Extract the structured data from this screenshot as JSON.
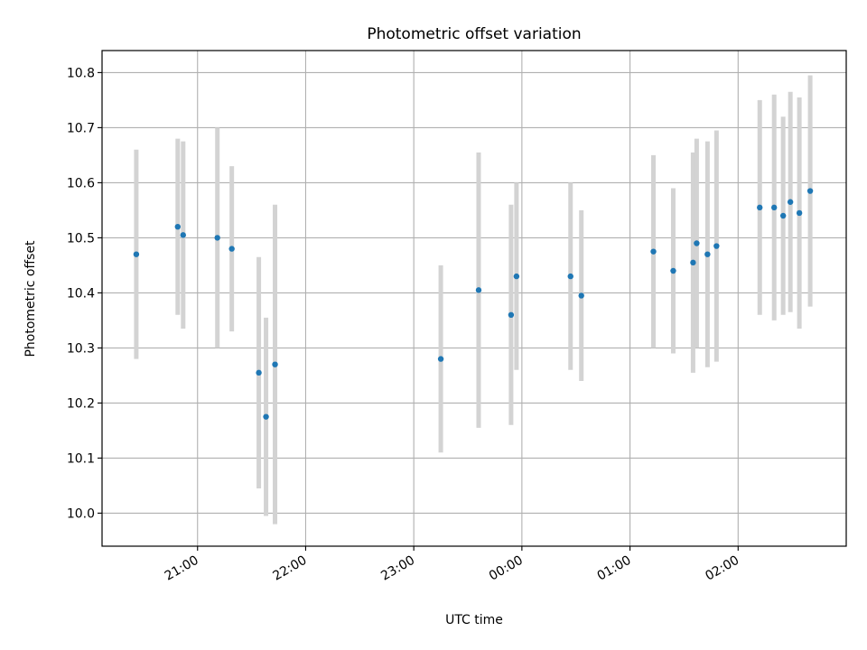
{
  "chart_data": {
    "type": "scatter",
    "title": "Photometric offset variation",
    "xlabel": "UTC time",
    "ylabel": "Photometric offset",
    "x_tick_labels": [
      "21:00",
      "22:00",
      "23:00",
      "00:00",
      "01:00",
      "02:00"
    ],
    "y_tick_labels": [
      "10.0",
      "10.1",
      "10.2",
      "10.3",
      "10.4",
      "10.5",
      "10.6",
      "10.7",
      "10.8"
    ],
    "grid": true,
    "colors": {
      "point": "#1f77b4",
      "errorbar": "#d3d3d3",
      "grid": "#b0b0b0"
    },
    "x_range": [
      "20:07",
      "03:00"
    ],
    "y_range": [
      9.94,
      10.84
    ],
    "points": [
      {
        "x": "20:26",
        "y": 10.47,
        "yerr": 0.19
      },
      {
        "x": "20:49",
        "y": 10.52,
        "yerr": 0.16
      },
      {
        "x": "20:52",
        "y": 10.505,
        "yerr": 0.17
      },
      {
        "x": "21:11",
        "y": 10.5,
        "yerr": 0.2
      },
      {
        "x": "21:19",
        "y": 10.48,
        "yerr": 0.15
      },
      {
        "x": "21:34",
        "y": 10.255,
        "yerr": 0.21
      },
      {
        "x": "21:38",
        "y": 10.175,
        "yerr": 0.18
      },
      {
        "x": "21:43",
        "y": 10.27,
        "yerr": 0.29
      },
      {
        "x": "23:15",
        "y": 10.28,
        "yerr": 0.17
      },
      {
        "x": "23:36",
        "y": 10.405,
        "yerr": 0.25
      },
      {
        "x": "23:54",
        "y": 10.36,
        "yerr": 0.2
      },
      {
        "x": "23:57",
        "y": 10.43,
        "yerr": 0.17
      },
      {
        "x": "00:27",
        "y": 10.43,
        "yerr": 0.17
      },
      {
        "x": "00:33",
        "y": 10.395,
        "yerr": 0.155
      },
      {
        "x": "01:13",
        "y": 10.475,
        "yerr": 0.175
      },
      {
        "x": "01:24",
        "y": 10.44,
        "yerr": 0.15
      },
      {
        "x": "01:35",
        "y": 10.455,
        "yerr": 0.2
      },
      {
        "x": "01:37",
        "y": 10.49,
        "yerr": 0.19
      },
      {
        "x": "01:43",
        "y": 10.47,
        "yerr": 0.205
      },
      {
        "x": "01:48",
        "y": 10.485,
        "yerr": 0.21
      },
      {
        "x": "02:12",
        "y": 10.555,
        "yerr": 0.195
      },
      {
        "x": "02:20",
        "y": 10.555,
        "yerr": 0.205
      },
      {
        "x": "02:25",
        "y": 10.54,
        "yerr": 0.18
      },
      {
        "x": "02:29",
        "y": 10.565,
        "yerr": 0.2
      },
      {
        "x": "02:34",
        "y": 10.545,
        "yerr": 0.21
      },
      {
        "x": "02:40",
        "y": 10.585,
        "yerr": 0.21
      }
    ]
  }
}
